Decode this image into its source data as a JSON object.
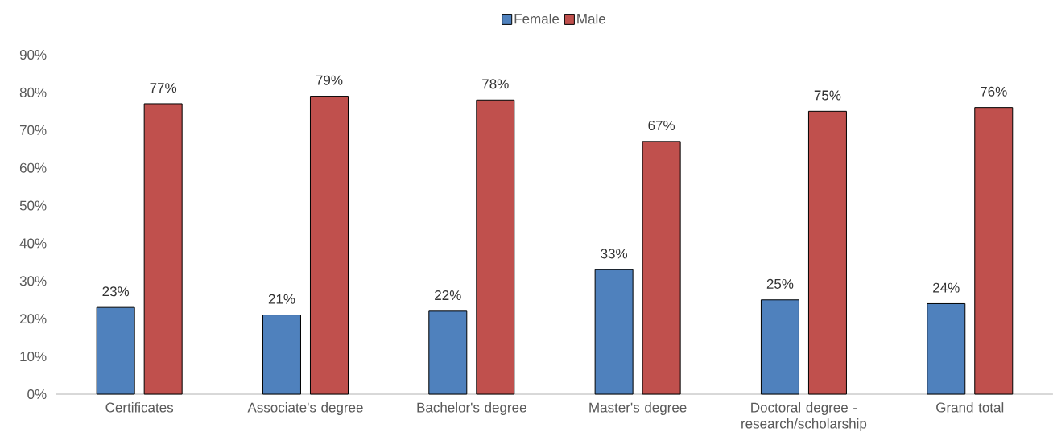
{
  "chart_data": {
    "type": "bar",
    "categories": [
      "Certificates",
      "Associate's degree",
      "Bachelor's degree",
      "Master's degree",
      "Doctoral degree - research/scholarship",
      "Grand total"
    ],
    "series": [
      {
        "name": "Female",
        "color": "#4f81bd",
        "values": [
          23,
          21,
          22,
          33,
          25,
          24
        ],
        "value_labels": [
          "23%",
          "21%",
          "22%",
          "33%",
          "25%",
          "24%"
        ]
      },
      {
        "name": "Male",
        "color": "#c0504d",
        "values": [
          77,
          79,
          78,
          67,
          75,
          76
        ],
        "value_labels": [
          "77%",
          "79%",
          "78%",
          "67%",
          "75%",
          "76%"
        ]
      }
    ],
    "ylim": [
      0,
      90
    ],
    "yticks": [
      {
        "value": 0,
        "label": "0%"
      },
      {
        "value": 10,
        "label": "10%"
      },
      {
        "value": 20,
        "label": "20%"
      },
      {
        "value": 30,
        "label": "30%"
      },
      {
        "value": 40,
        "label": "40%"
      },
      {
        "value": 50,
        "label": "50%"
      },
      {
        "value": 60,
        "label": "60%"
      },
      {
        "value": 70,
        "label": "70%"
      },
      {
        "value": 80,
        "label": "80%"
      },
      {
        "value": 90,
        "label": "90%"
      }
    ],
    "legend": "top"
  }
}
